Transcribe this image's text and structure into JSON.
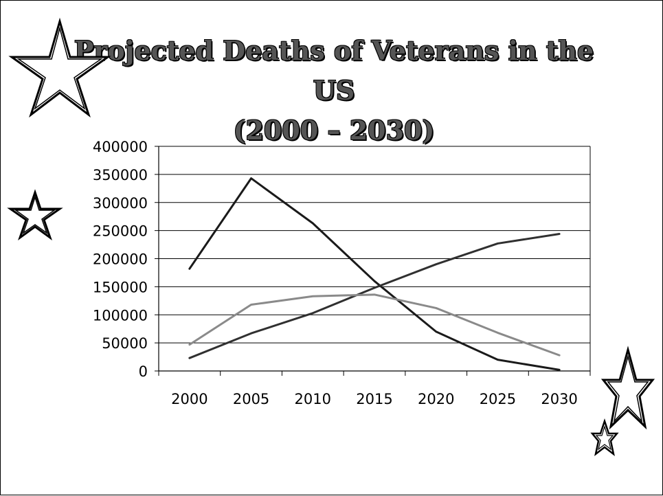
{
  "title": {
    "line1": "Projected Deaths of Veterans in the US",
    "line2": "(2000 – 2030)"
  },
  "chart_data": {
    "type": "line",
    "categories": [
      "2000",
      "2005",
      "2010",
      "2015",
      "2020",
      "2025",
      "2030"
    ],
    "ylim": [
      0,
      400000
    ],
    "yticks": [
      "400000",
      "350000",
      "300000",
      "250000",
      "200000",
      "150000",
      "100000",
      "50000",
      "0"
    ],
    "grid": true,
    "series": [
      {
        "values": [
          182000,
          343000,
          263000,
          160000,
          70000,
          20000,
          2000
        ],
        "color": "#1a1a1a"
      },
      {
        "values": [
          23000,
          67000,
          103000,
          148000,
          190000,
          227000,
          244000
        ],
        "color": "#303030"
      },
      {
        "values": [
          47000,
          118000,
          133000,
          136000,
          112000,
          68000,
          28000
        ],
        "color": "#8a8a8a"
      }
    ]
  },
  "decorations": [
    {
      "icon": "star-outline-icon"
    },
    {
      "icon": "star-outline-icon"
    },
    {
      "icon": "star-outline-icon"
    },
    {
      "icon": "star-outline-icon"
    }
  ]
}
